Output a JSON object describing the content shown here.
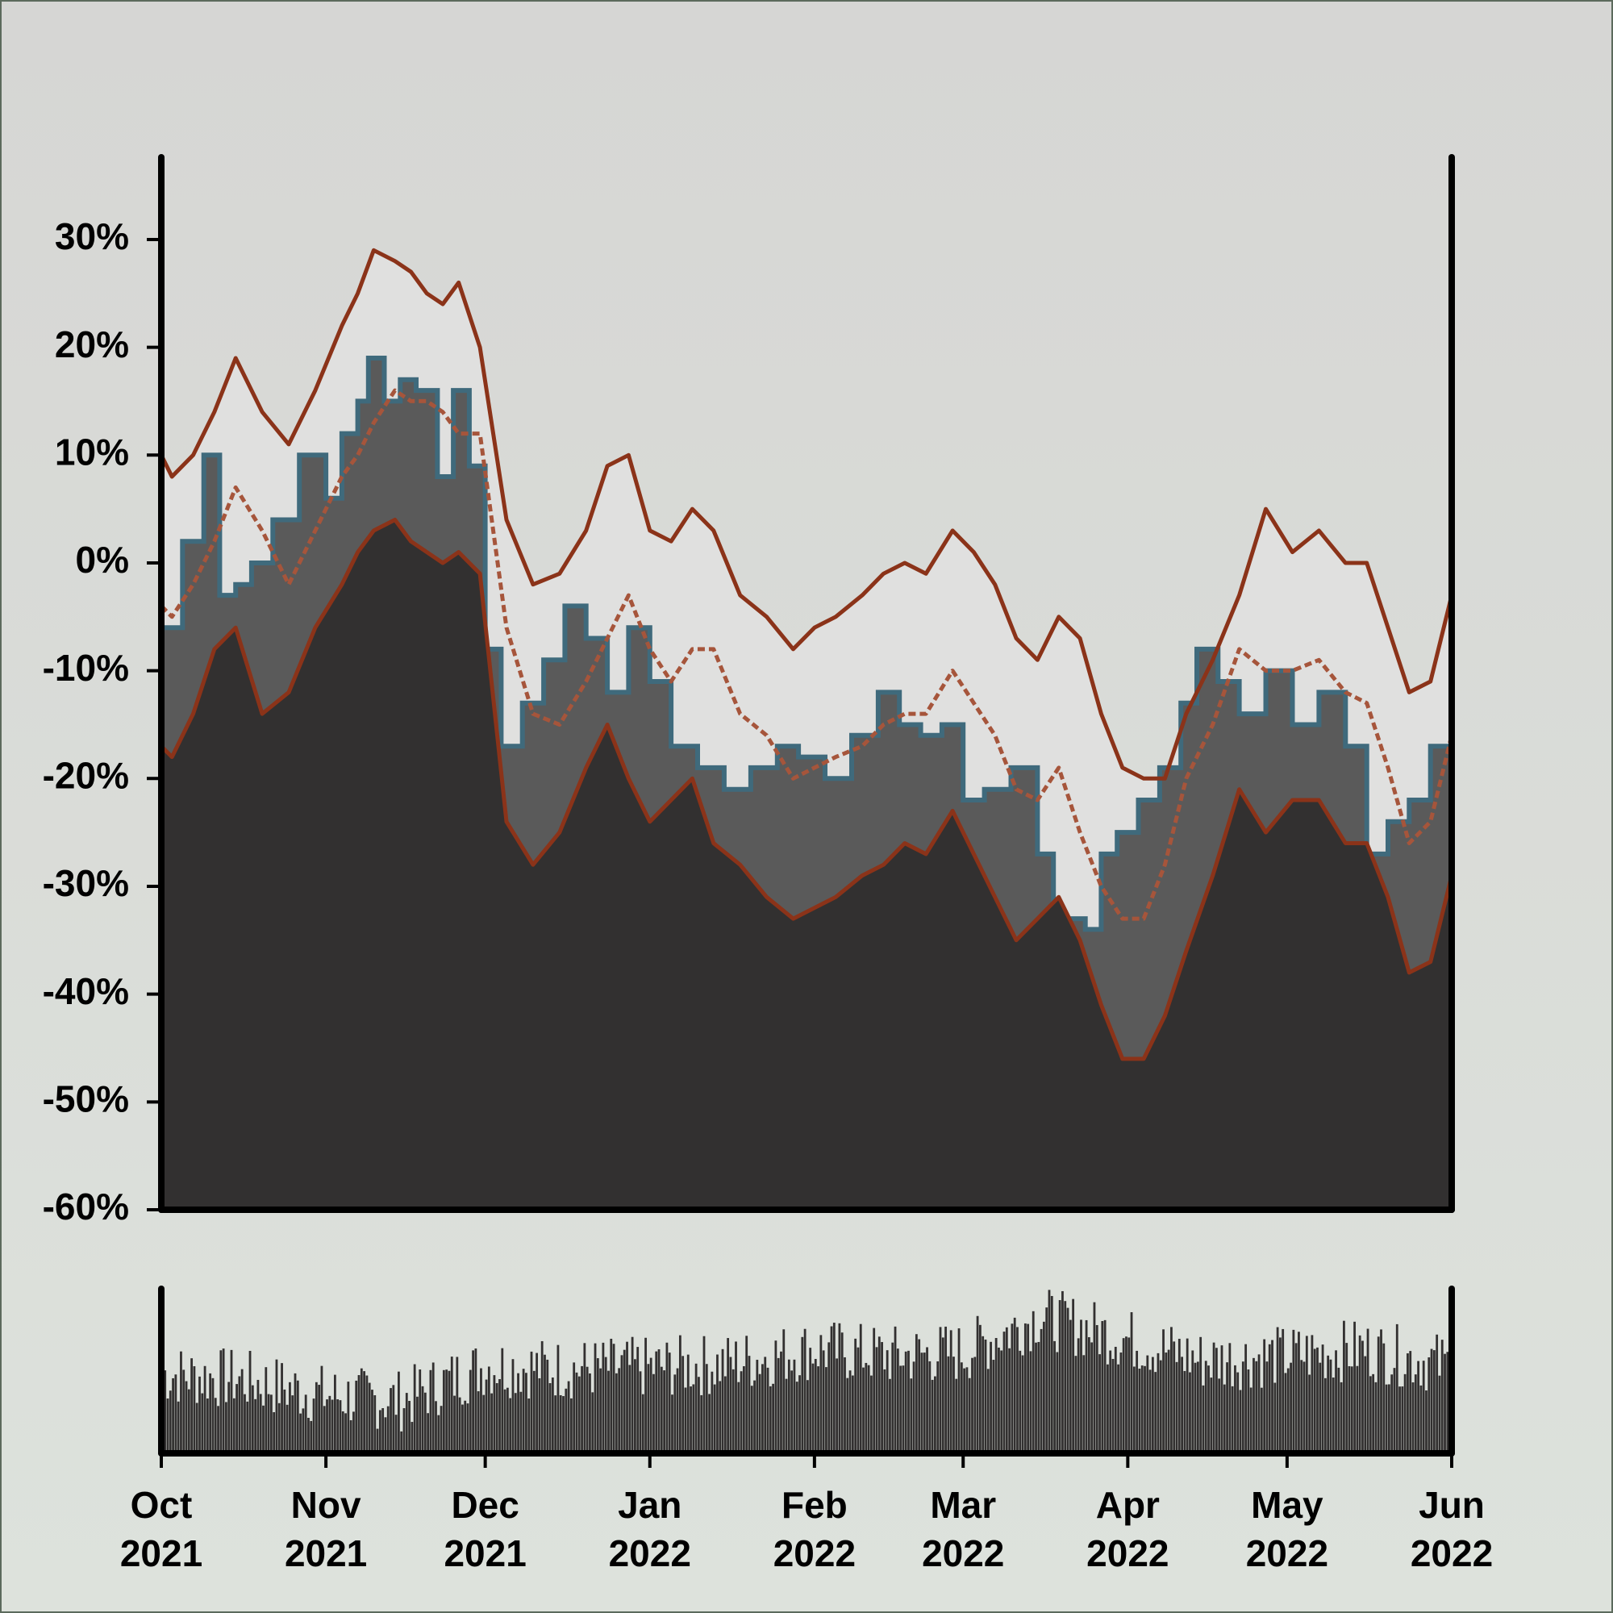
{
  "chart_data": {
    "type": "area",
    "y_axis": {
      "ylim": [
        -60,
        38
      ],
      "ticks": [
        30,
        20,
        10,
        0,
        -10,
        -20,
        -30,
        -40,
        -50,
        -60
      ],
      "tick_labels": [
        "30%",
        "20%",
        "10%",
        "0%",
        "-10%",
        "-20%",
        "-30%",
        "-40%",
        "-50%",
        "-60%"
      ]
    },
    "x_axis": {
      "range": [
        "2021-10-01",
        "2022-06-01"
      ],
      "ticks": [
        "2021-10-01",
        "2021-11-01",
        "2021-12-01",
        "2022-01-01",
        "2022-02-01",
        "2022-03-01",
        "2022-04-01",
        "2022-05-01",
        "2022-06-01"
      ],
      "tick_labels": [
        {
          "month": "Oct",
          "year": "2021"
        },
        {
          "month": "Nov",
          "year": "2021"
        },
        {
          "month": "Dec",
          "year": "2021"
        },
        {
          "month": "Jan",
          "year": "2022"
        },
        {
          "month": "Feb",
          "year": "2022"
        },
        {
          "month": "Mar",
          "year": "2022"
        },
        {
          "month": "Apr",
          "year": "2022"
        },
        {
          "month": "May",
          "year": "2022"
        },
        {
          "month": "Jun",
          "year": "2022"
        }
      ]
    },
    "grid": false,
    "legend": "none",
    "series": [
      {
        "role": "value",
        "style": "step-area",
        "x": [
          "2021-10-01",
          "2021-10-05",
          "2021-10-09",
          "2021-10-12",
          "2021-10-15",
          "2021-10-18",
          "2021-10-22",
          "2021-10-27",
          "2021-11-01",
          "2021-11-04",
          "2021-11-07",
          "2021-11-09",
          "2021-11-12",
          "2021-11-15",
          "2021-11-18",
          "2021-11-22",
          "2021-11-25",
          "2021-11-28",
          "2021-12-01",
          "2021-12-04",
          "2021-12-08",
          "2021-12-12",
          "2021-12-16",
          "2021-12-20",
          "2021-12-24",
          "2021-12-28",
          "2022-01-01",
          "2022-01-05",
          "2022-01-10",
          "2022-01-15",
          "2022-01-20",
          "2022-01-25",
          "2022-01-29",
          "2022-02-03",
          "2022-02-08",
          "2022-02-13",
          "2022-02-17",
          "2022-02-21",
          "2022-02-25",
          "2022-03-01",
          "2022-03-05",
          "2022-03-10",
          "2022-03-15",
          "2022-03-18",
          "2022-03-21",
          "2022-03-24",
          "2022-03-27",
          "2022-03-30",
          "2022-04-03",
          "2022-04-07",
          "2022-04-11",
          "2022-04-14",
          "2022-04-18",
          "2022-04-22",
          "2022-04-27",
          "2022-05-02",
          "2022-05-07",
          "2022-05-12",
          "2022-05-16",
          "2022-05-20",
          "2022-05-24",
          "2022-05-28",
          "2022-06-01"
        ],
        "y": [
          -6,
          2,
          10,
          -3,
          -2,
          0,
          4,
          10,
          6,
          12,
          15,
          19,
          15,
          17,
          16,
          8,
          16,
          9,
          -8,
          -17,
          -13,
          -9,
          -4,
          -7,
          -12,
          -6,
          -11,
          -17,
          -19,
          -21,
          -19,
          -17,
          -18,
          -20,
          -16,
          -12,
          -15,
          -16,
          -15,
          -22,
          -21,
          -19,
          -27,
          -35,
          -33,
          -34,
          -27,
          -25,
          -22,
          -19,
          -13,
          -8,
          -11,
          -14,
          -10,
          -15,
          -12,
          -17,
          -27,
          -24,
          -22,
          -17,
          -22
        ]
      },
      {
        "role": "upper band",
        "style": "solid line",
        "x": [
          "2021-10-01",
          "2021-10-03",
          "2021-10-07",
          "2021-10-11",
          "2021-10-15",
          "2021-10-20",
          "2021-10-25",
          "2021-10-30",
          "2021-11-04",
          "2021-11-07",
          "2021-11-10",
          "2021-11-14",
          "2021-11-17",
          "2021-11-20",
          "2021-11-23",
          "2021-11-26",
          "2021-11-30",
          "2021-12-05",
          "2021-12-10",
          "2021-12-15",
          "2021-12-20",
          "2021-12-24",
          "2021-12-28",
          "2022-01-01",
          "2022-01-05",
          "2022-01-09",
          "2022-01-13",
          "2022-01-18",
          "2022-01-23",
          "2022-01-28",
          "2022-02-01",
          "2022-02-05",
          "2022-02-10",
          "2022-02-14",
          "2022-02-18",
          "2022-02-22",
          "2022-02-27",
          "2022-03-03",
          "2022-03-07",
          "2022-03-11",
          "2022-03-15",
          "2022-03-19",
          "2022-03-23",
          "2022-03-27",
          "2022-03-31",
          "2022-04-04",
          "2022-04-08",
          "2022-04-12",
          "2022-04-17",
          "2022-04-22",
          "2022-04-27",
          "2022-05-02",
          "2022-05-07",
          "2022-05-12",
          "2022-05-16",
          "2022-05-20",
          "2022-05-24",
          "2022-05-28",
          "2022-06-01"
        ],
        "y": [
          10,
          8,
          10,
          14,
          19,
          14,
          11,
          16,
          22,
          25,
          29,
          28,
          27,
          25,
          24,
          26,
          20,
          4,
          -2,
          -1,
          3,
          9,
          10,
          3,
          2,
          5,
          3,
          -3,
          -5,
          -8,
          -6,
          -5,
          -3,
          -1,
          0,
          -1,
          3,
          1,
          -2,
          -7,
          -9,
          -5,
          -7,
          -14,
          -19,
          -20,
          -20,
          -14,
          -9,
          -3,
          5,
          1,
          3,
          0,
          0,
          -6,
          -12,
          -11,
          -3
        ]
      },
      {
        "role": "mid band",
        "style": "dashed line",
        "x": [
          "2021-10-01",
          "2021-10-03",
          "2021-10-07",
          "2021-10-11",
          "2021-10-15",
          "2021-10-20",
          "2021-10-25",
          "2021-10-30",
          "2021-11-04",
          "2021-11-07",
          "2021-11-10",
          "2021-11-14",
          "2021-11-17",
          "2021-11-20",
          "2021-11-23",
          "2021-11-26",
          "2021-11-30",
          "2021-12-05",
          "2021-12-10",
          "2021-12-15",
          "2021-12-20",
          "2021-12-24",
          "2021-12-28",
          "2022-01-01",
          "2022-01-05",
          "2022-01-09",
          "2022-01-13",
          "2022-01-18",
          "2022-01-23",
          "2022-01-28",
          "2022-02-01",
          "2022-02-05",
          "2022-02-10",
          "2022-02-14",
          "2022-02-18",
          "2022-02-22",
          "2022-02-27",
          "2022-03-03",
          "2022-03-07",
          "2022-03-11",
          "2022-03-15",
          "2022-03-19",
          "2022-03-23",
          "2022-03-27",
          "2022-03-31",
          "2022-04-04",
          "2022-04-08",
          "2022-04-12",
          "2022-04-17",
          "2022-04-22",
          "2022-04-27",
          "2022-05-02",
          "2022-05-07",
          "2022-05-12",
          "2022-05-16",
          "2022-05-20",
          "2022-05-24",
          "2022-05-28",
          "2022-06-01"
        ],
        "y": [
          -4,
          -5,
          -2,
          2,
          7,
          3,
          -2,
          3,
          8,
          10,
          13,
          16,
          15,
          15,
          14,
          12,
          12,
          -6,
          -14,
          -15,
          -11,
          -7,
          -3,
          -8,
          -11,
          -8,
          -8,
          -14,
          -16,
          -20,
          -19,
          -18,
          -17,
          -15,
          -14,
          -14,
          -10,
          -13,
          -16,
          -21,
          -22,
          -19,
          -25,
          -30,
          -33,
          -33,
          -28,
          -20,
          -15,
          -8,
          -10,
          -10,
          -9,
          -12,
          -13,
          -19,
          -26,
          -24,
          -16
        ]
      },
      {
        "role": "lower band",
        "style": "solid line",
        "x": [
          "2021-10-01",
          "2021-10-03",
          "2021-10-07",
          "2021-10-11",
          "2021-10-15",
          "2021-10-20",
          "2021-10-25",
          "2021-10-30",
          "2021-11-04",
          "2021-11-07",
          "2021-11-10",
          "2021-11-14",
          "2021-11-17",
          "2021-11-20",
          "2021-11-23",
          "2021-11-26",
          "2021-11-30",
          "2021-12-05",
          "2021-12-10",
          "2021-12-15",
          "2021-12-20",
          "2021-12-24",
          "2021-12-28",
          "2022-01-01",
          "2022-01-05",
          "2022-01-09",
          "2022-01-13",
          "2022-01-18",
          "2022-01-23",
          "2022-01-28",
          "2022-02-01",
          "2022-02-05",
          "2022-02-10",
          "2022-02-14",
          "2022-02-18",
          "2022-02-22",
          "2022-02-27",
          "2022-03-03",
          "2022-03-07",
          "2022-03-11",
          "2022-03-15",
          "2022-03-19",
          "2022-03-23",
          "2022-03-27",
          "2022-03-31",
          "2022-04-04",
          "2022-04-08",
          "2022-04-12",
          "2022-04-17",
          "2022-04-22",
          "2022-04-27",
          "2022-05-02",
          "2022-05-07",
          "2022-05-12",
          "2022-05-16",
          "2022-05-20",
          "2022-05-24",
          "2022-05-28",
          "2022-06-01"
        ],
        "y": [
          -17,
          -18,
          -14,
          -8,
          -6,
          -14,
          -12,
          -6,
          -2,
          1,
          3,
          4,
          2,
          1,
          0,
          1,
          -1,
          -24,
          -28,
          -25,
          -19,
          -15,
          -20,
          -24,
          -22,
          -20,
          -26,
          -28,
          -31,
          -33,
          -32,
          -31,
          -29,
          -28,
          -26,
          -27,
          -23,
          -27,
          -31,
          -35,
          -33,
          -31,
          -35,
          -41,
          -46,
          -46,
          -42,
          -36,
          -29,
          -21,
          -25,
          -22,
          -22,
          -26,
          -26,
          -31,
          -38,
          -37,
          -29
        ]
      }
    ],
    "volume": {
      "type": "bar",
      "y_axis_labels": "none",
      "x": [
        "2021-10-01",
        "2021-10-15",
        "2021-11-01",
        "2021-11-15",
        "2021-12-01",
        "2021-12-15",
        "2022-01-01",
        "2022-01-15",
        "2022-02-01",
        "2022-02-15",
        "2022-03-01",
        "2022-03-15",
        "2022-04-01",
        "2022-04-15",
        "2022-05-01",
        "2022-05-15",
        "2022-06-01"
      ],
      "level": [
        0.47,
        0.44,
        0.34,
        0.31,
        0.52,
        0.5,
        0.51,
        0.53,
        0.62,
        0.58,
        0.6,
        0.82,
        0.68,
        0.55,
        0.58,
        0.62,
        0.52
      ],
      "colors": {
        "bars": "#323030"
      }
    },
    "colors": {
      "background": "#d6d8d3",
      "plot_band": "#e0e0df",
      "area_dark": "#323030",
      "area_mid": "#5a5a5a",
      "value_line": "#3f6a7c",
      "band_lines": "#8b3319",
      "mid_dashed": "#a6553b",
      "axis": "#000000"
    }
  }
}
